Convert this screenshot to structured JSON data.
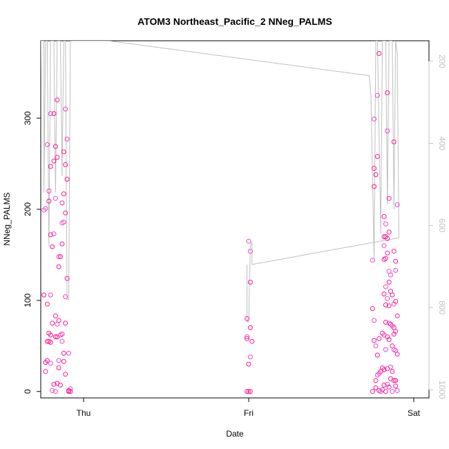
{
  "chart_data": {
    "type": "scatter",
    "title": "ATOM3 Northeast_Pacific_2 NNeg_PALMS",
    "xlabel": "Date",
    "ylabel": "NNeg_PALMS",
    "x_ticks": [
      "Thu",
      "Fri",
      "Sat"
    ],
    "y_ticks": [
      "0",
      "100",
      "200",
      "300"
    ],
    "y2_ticks": [
      "200",
      "400",
      "600",
      "800",
      "1000"
    ],
    "ylim": [
      -7,
      385
    ],
    "y2lim": [
      1020,
      150
    ],
    "grid": false,
    "colors": {
      "points": "#ff1493",
      "points_light": "#ee44cc",
      "line": "#bebebe",
      "axis": "#000000",
      "y2_axis": "#c0c0c0"
    },
    "series": [
      {
        "values": [
          {
            "x": 0.76,
            "y": 106
          },
          {
            "x": 0.76,
            "y": 199
          },
          {
            "x": 0.77,
            "y": 32
          },
          {
            "x": 0.77,
            "y": 22
          },
          {
            "x": 0.77,
            "y": 201
          },
          {
            "x": 0.78,
            "y": 55
          },
          {
            "x": 0.78,
            "y": 96
          },
          {
            "x": 0.78,
            "y": 271
          },
          {
            "x": 0.78,
            "y": 34
          },
          {
            "x": 0.79,
            "y": 209
          },
          {
            "x": 0.79,
            "y": 220
          },
          {
            "x": 0.79,
            "y": 64
          },
          {
            "x": 0.79,
            "y": 55
          },
          {
            "x": 0.8,
            "y": 305
          },
          {
            "x": 0.8,
            "y": 247
          },
          {
            "x": 0.8,
            "y": 172
          },
          {
            "x": 0.8,
            "y": 106
          },
          {
            "x": 0.8,
            "y": 62
          },
          {
            "x": 0.8,
            "y": 54
          },
          {
            "x": 0.8,
            "y": 31
          },
          {
            "x": 0.81,
            "y": 159
          },
          {
            "x": 0.81,
            "y": 75
          },
          {
            "x": 0.81,
            "y": 1
          },
          {
            "x": 0.82,
            "y": 305
          },
          {
            "x": 0.82,
            "y": 253
          },
          {
            "x": 0.82,
            "y": 173
          },
          {
            "x": 0.82,
            "y": 8
          },
          {
            "x": 0.83,
            "y": 269
          },
          {
            "x": 0.83,
            "y": 212
          },
          {
            "x": 0.83,
            "y": 83
          },
          {
            "x": 0.83,
            "y": 60
          },
          {
            "x": 0.83,
            "y": 0
          },
          {
            "x": 0.84,
            "y": 320
          },
          {
            "x": 0.84,
            "y": 257
          },
          {
            "x": 0.84,
            "y": 74
          },
          {
            "x": 0.84,
            "y": 60
          },
          {
            "x": 0.84,
            "y": 9
          },
          {
            "x": 0.85,
            "y": 148
          },
          {
            "x": 0.85,
            "y": 137
          },
          {
            "x": 0.85,
            "y": 78
          },
          {
            "x": 0.85,
            "y": 34
          },
          {
            "x": 0.85,
            "y": 26
          },
          {
            "x": 0.86,
            "y": 148
          },
          {
            "x": 0.86,
            "y": 62
          },
          {
            "x": 0.86,
            "y": 7
          },
          {
            "x": 0.87,
            "y": 207
          },
          {
            "x": 0.87,
            "y": 185
          },
          {
            "x": 0.87,
            "y": 162
          },
          {
            "x": 0.87,
            "y": 63
          },
          {
            "x": 0.87,
            "y": 55
          },
          {
            "x": 0.88,
            "y": 263
          },
          {
            "x": 0.88,
            "y": 217
          },
          {
            "x": 0.88,
            "y": 186
          },
          {
            "x": 0.88,
            "y": 42
          },
          {
            "x": 0.88,
            "y": 33
          },
          {
            "x": 0.89,
            "y": 310
          },
          {
            "x": 0.89,
            "y": 249
          },
          {
            "x": 0.89,
            "y": 196
          },
          {
            "x": 0.89,
            "y": 104
          },
          {
            "x": 0.89,
            "y": 75
          },
          {
            "x": 0.89,
            "y": 19
          },
          {
            "x": 0.9,
            "y": 277
          },
          {
            "x": 0.9,
            "y": 233
          },
          {
            "x": 0.9,
            "y": 124
          },
          {
            "x": 0.91,
            "y": 42
          },
          {
            "x": 0.91,
            "y": 1
          },
          {
            "x": 0.91,
            "y": 0
          },
          {
            "x": 0.92,
            "y": 3
          },
          {
            "x": 0.92,
            "y": 0
          },
          {
            "x": 1.99,
            "y": 80
          },
          {
            "x": 1.99,
            "y": 60
          },
          {
            "x": 1.99,
            "y": 58
          },
          {
            "x": 1.99,
            "y": 0
          },
          {
            "x": 2.0,
            "y": 165
          },
          {
            "x": 2.0,
            "y": 30
          },
          {
            "x": 2.0,
            "y": 0
          },
          {
            "x": 2.01,
            "y": 154
          },
          {
            "x": 2.01,
            "y": 120
          },
          {
            "x": 2.01,
            "y": 70
          },
          {
            "x": 2.01,
            "y": 38
          },
          {
            "x": 2.01,
            "y": 0
          },
          {
            "x": 2.02,
            "y": 55
          },
          {
            "x": 2.75,
            "y": 144
          },
          {
            "x": 2.75,
            "y": 91
          },
          {
            "x": 2.75,
            "y": 0
          },
          {
            "x": 2.76,
            "y": 299
          },
          {
            "x": 2.76,
            "y": 245
          },
          {
            "x": 2.76,
            "y": 225
          },
          {
            "x": 2.76,
            "y": 78
          },
          {
            "x": 2.76,
            "y": 56
          },
          {
            "x": 2.77,
            "y": 238
          },
          {
            "x": 2.77,
            "y": 50
          },
          {
            "x": 2.77,
            "y": 12
          },
          {
            "x": 2.77,
            "y": 4
          },
          {
            "x": 2.78,
            "y": 325
          },
          {
            "x": 2.78,
            "y": 258
          },
          {
            "x": 2.78,
            "y": 40
          },
          {
            "x": 2.78,
            "y": 18
          },
          {
            "x": 2.79,
            "y": 371
          },
          {
            "x": 2.79,
            "y": 58
          },
          {
            "x": 2.79,
            "y": 20
          },
          {
            "x": 2.79,
            "y": 1
          },
          {
            "x": 2.8,
            "y": 22
          },
          {
            "x": 2.8,
            "y": 0
          },
          {
            "x": 2.81,
            "y": 64
          },
          {
            "x": 2.81,
            "y": 26
          },
          {
            "x": 2.81,
            "y": 2
          },
          {
            "x": 2.82,
            "y": 192
          },
          {
            "x": 2.82,
            "y": 170
          },
          {
            "x": 2.82,
            "y": 160
          },
          {
            "x": 2.82,
            "y": 145
          },
          {
            "x": 2.82,
            "y": 107
          },
          {
            "x": 2.82,
            "y": 62
          },
          {
            "x": 2.82,
            "y": 24
          },
          {
            "x": 2.82,
            "y": 7
          },
          {
            "x": 2.83,
            "y": 184
          },
          {
            "x": 2.83,
            "y": 170
          },
          {
            "x": 2.83,
            "y": 146
          },
          {
            "x": 2.83,
            "y": 115
          },
          {
            "x": 2.83,
            "y": 95
          },
          {
            "x": 2.83,
            "y": 76
          },
          {
            "x": 2.83,
            "y": 46
          },
          {
            "x": 2.83,
            "y": 0
          },
          {
            "x": 2.84,
            "y": 328
          },
          {
            "x": 2.84,
            "y": 286
          },
          {
            "x": 2.84,
            "y": 168
          },
          {
            "x": 2.84,
            "y": 152
          },
          {
            "x": 2.84,
            "y": 102
          },
          {
            "x": 2.84,
            "y": 60
          },
          {
            "x": 2.84,
            "y": 25
          },
          {
            "x": 2.84,
            "y": 8
          },
          {
            "x": 2.85,
            "y": 212
          },
          {
            "x": 2.85,
            "y": 175
          },
          {
            "x": 2.85,
            "y": 132
          },
          {
            "x": 2.85,
            "y": 120
          },
          {
            "x": 2.85,
            "y": 94
          },
          {
            "x": 2.85,
            "y": 75
          },
          {
            "x": 2.85,
            "y": 57
          },
          {
            "x": 2.85,
            "y": 5
          },
          {
            "x": 2.86,
            "y": 128
          },
          {
            "x": 2.86,
            "y": 110
          },
          {
            "x": 2.86,
            "y": 74
          },
          {
            "x": 2.86,
            "y": 27
          },
          {
            "x": 2.86,
            "y": 14
          },
          {
            "x": 2.87,
            "y": 106
          },
          {
            "x": 2.87,
            "y": 72
          },
          {
            "x": 2.87,
            "y": 50
          },
          {
            "x": 2.87,
            "y": 22
          },
          {
            "x": 2.87,
            "y": 0
          },
          {
            "x": 2.88,
            "y": 274
          },
          {
            "x": 2.88,
            "y": 154
          },
          {
            "x": 2.88,
            "y": 96
          },
          {
            "x": 2.88,
            "y": 70
          },
          {
            "x": 2.88,
            "y": 63
          },
          {
            "x": 2.88,
            "y": 46
          },
          {
            "x": 2.88,
            "y": 12
          },
          {
            "x": 2.89,
            "y": 143
          },
          {
            "x": 2.89,
            "y": 133
          },
          {
            "x": 2.89,
            "y": 99
          },
          {
            "x": 2.89,
            "y": 66
          },
          {
            "x": 2.89,
            "y": 45
          },
          {
            "x": 2.89,
            "y": 12
          },
          {
            "x": 2.89,
            "y": 6
          },
          {
            "x": 2.9,
            "y": 205
          },
          {
            "x": 2.9,
            "y": 83
          },
          {
            "x": 2.9,
            "y": 41
          },
          {
            "x": 2.9,
            "y": 1
          }
        ]
      }
    ],
    "line_series": [
      {
        "x": 0.73,
        "y2": 680
      },
      {
        "x": 0.74,
        "y2": 150
      },
      {
        "x": 0.76,
        "y2": 150
      },
      {
        "x": 0.76,
        "y2": 520
      },
      {
        "x": 0.77,
        "y2": 150
      },
      {
        "x": 0.78,
        "y2": 150
      },
      {
        "x": 0.79,
        "y2": 650
      },
      {
        "x": 0.8,
        "y2": 150
      },
      {
        "x": 0.82,
        "y2": 150
      },
      {
        "x": 0.83,
        "y2": 520
      },
      {
        "x": 0.84,
        "y2": 150
      },
      {
        "x": 0.86,
        "y2": 150
      },
      {
        "x": 0.87,
        "y2": 480
      },
      {
        "x": 0.88,
        "y2": 150
      },
      {
        "x": 0.89,
        "y2": 150
      },
      {
        "x": 0.9,
        "y2": 780
      },
      {
        "x": 0.91,
        "y2": 780
      },
      {
        "x": 0.92,
        "y2": 150
      },
      {
        "x": 0.93,
        "y2": 150
      },
      {
        "x": 1.15,
        "y2": 150
      },
      {
        "x": 2.73,
        "y2": 235
      },
      {
        "x": 2.74,
        "y2": 280
      },
      {
        "x": 2.76,
        "y2": 685
      },
      {
        "x": 2.77,
        "y2": 150
      },
      {
        "x": 2.78,
        "y2": 150
      },
      {
        "x": 2.8,
        "y2": 620
      },
      {
        "x": 2.81,
        "y2": 150
      },
      {
        "x": 2.83,
        "y2": 150
      },
      {
        "x": 2.84,
        "y2": 550
      },
      {
        "x": 2.85,
        "y2": 150
      },
      {
        "x": 2.87,
        "y2": 150
      },
      {
        "x": 2.88,
        "y2": 560
      },
      {
        "x": 2.89,
        "y2": 150
      },
      {
        "x": 2.9,
        "y2": 180
      },
      {
        "x": 2.91,
        "y2": 630
      }
    ],
    "line_series_2": [
      {
        "x": 1.99,
        "y2": 695
      },
      {
        "x": 1.99,
        "y2": 835
      },
      {
        "x": 2.0,
        "y2": 835
      },
      {
        "x": 2.01,
        "y2": 650
      },
      {
        "x": 2.02,
        "y2": 640
      },
      {
        "x": 2.02,
        "y2": 695
      },
      {
        "x": 2.91,
        "y2": 630
      }
    ]
  }
}
